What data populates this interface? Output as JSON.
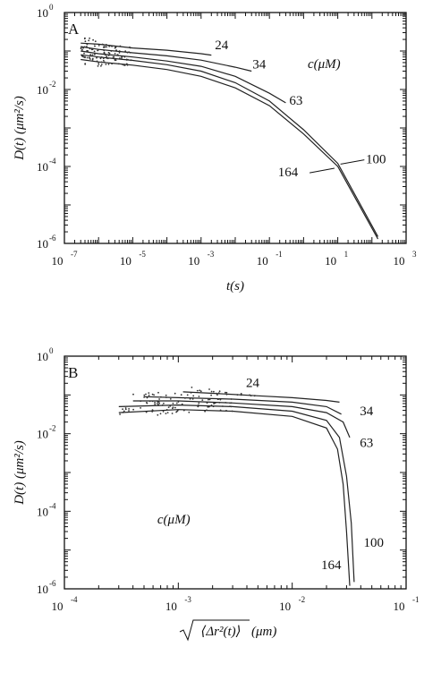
{
  "chart_data": [
    {
      "type": "line",
      "panel_label": "A",
      "xlabel": "t(s)",
      "ylabel": "D(t) (μm²/s)",
      "x_scale": "log",
      "y_scale": "log",
      "xlim": [
        1e-07,
        1000
      ],
      "ylim": [
        1e-06,
        1
      ],
      "x_ticks": [
        {
          "base": "10",
          "exp": "-7",
          "value": 1e-07
        },
        {
          "base": "10",
          "exp": "-5",
          "value": 1e-05
        },
        {
          "base": "10",
          "exp": "-3",
          "value": 0.001
        },
        {
          "base": "10",
          "exp": "-1",
          "value": 0.1
        },
        {
          "base": "10",
          "exp": "1",
          "value": 10
        },
        {
          "base": "10",
          "exp": "3",
          "value": 1000
        }
      ],
      "y_ticks": [
        {
          "base": "10",
          "exp": "0",
          "value": 1
        },
        {
          "base": "10",
          "exp": "-2",
          "value": 0.01
        },
        {
          "base": "10",
          "exp": "-4",
          "value": 0.0001
        },
        {
          "base": "10",
          "exp": "-6",
          "value": 1e-06
        }
      ],
      "legend_title": "c(μM)",
      "series": [
        {
          "name": "24",
          "x": [
            3e-07,
            1e-06,
            1e-05,
            0.0001,
            0.001,
            0.002
          ],
          "y": [
            0.16,
            0.15,
            0.12,
            0.105,
            0.085,
            0.078
          ]
        },
        {
          "name": "34",
          "x": [
            3e-07,
            1e-06,
            1e-05,
            0.0001,
            0.001,
            0.01,
            0.03
          ],
          "y": [
            0.13,
            0.11,
            0.09,
            0.075,
            0.058,
            0.038,
            0.03
          ]
        },
        {
          "name": "63",
          "x": [
            3e-07,
            1e-06,
            1e-05,
            0.0001,
            0.001,
            0.01,
            0.1,
            0.3
          ],
          "y": [
            0.1,
            0.085,
            0.07,
            0.055,
            0.04,
            0.022,
            0.008,
            0.0045
          ]
        },
        {
          "name": "100",
          "x": [
            3e-07,
            1e-06,
            1e-05,
            0.0001,
            0.001,
            0.01,
            0.1,
            1,
            10,
            150
          ],
          "y": [
            0.08,
            0.07,
            0.057,
            0.044,
            0.03,
            0.015,
            0.005,
            0.0009,
            0.00012,
            1.5e-06
          ]
        },
        {
          "name": "164",
          "x": [
            3e-07,
            1e-06,
            1e-05,
            0.0001,
            0.001,
            0.01,
            0.1,
            1,
            10,
            150
          ],
          "y": [
            0.06,
            0.052,
            0.043,
            0.033,
            0.022,
            0.011,
            0.0038,
            0.0007,
            0.0001,
            1.3e-06
          ]
        }
      ],
      "curve_label_at": [
        {
          "name": "24",
          "x": 0.004,
          "y": 0.11
        },
        {
          "name": "34",
          "x": 0.05,
          "y": 0.035
        },
        {
          "name": "63",
          "x": 0.6,
          "y": 0.004
        },
        {
          "name": "100",
          "x": 130,
          "y": 0.00012
        },
        {
          "name": "164",
          "x": 0.35,
          "y": 5.5e-05
        }
      ]
    },
    {
      "type": "line",
      "panel_label": "B",
      "xlabel": "(μm)",
      "xlabel_sqrt": "⟨Δr²(t)⟩",
      "ylabel": "D(t) (μm²/s)",
      "x_scale": "log",
      "y_scale": "log",
      "xlim": [
        0.0001,
        0.1
      ],
      "ylim": [
        1e-06,
        1
      ],
      "x_ticks": [
        {
          "base": "10",
          "exp": "-4",
          "value": 0.0001
        },
        {
          "base": "10",
          "exp": "-3",
          "value": 0.001
        },
        {
          "base": "10",
          "exp": "-2",
          "value": 0.01
        },
        {
          "base": "10",
          "exp": "-1",
          "value": 0.1
        }
      ],
      "y_ticks": [
        {
          "base": "10",
          "exp": "0",
          "value": 1
        },
        {
          "base": "10",
          "exp": "-2",
          "value": 0.01
        },
        {
          "base": "10",
          "exp": "-4",
          "value": 0.0001
        },
        {
          "base": "10",
          "exp": "-6",
          "value": 1e-06
        }
      ],
      "legend_title": "c(μM)",
      "series": [
        {
          "name": "24",
          "x": [
            0.0011,
            0.002,
            0.005,
            0.01,
            0.02,
            0.026
          ],
          "y": [
            0.12,
            0.11,
            0.095,
            0.085,
            0.072,
            0.065
          ]
        },
        {
          "name": "34",
          "x": [
            0.0005,
            0.001,
            0.003,
            0.01,
            0.02,
            0.027
          ],
          "y": [
            0.09,
            0.085,
            0.078,
            0.065,
            0.05,
            0.032
          ]
        },
        {
          "name": "63",
          "x": [
            0.0004,
            0.001,
            0.003,
            0.01,
            0.02,
            0.028,
            0.032
          ],
          "y": [
            0.07,
            0.07,
            0.062,
            0.05,
            0.035,
            0.02,
            0.008
          ]
        },
        {
          "name": "100",
          "x": [
            0.0003,
            0.001,
            0.003,
            0.01,
            0.02,
            0.026,
            0.03,
            0.033,
            0.035
          ],
          "y": [
            0.05,
            0.055,
            0.05,
            0.038,
            0.022,
            0.008,
            0.0008,
            5e-05,
            1.5e-06
          ]
        },
        {
          "name": "164",
          "x": [
            0.0003,
            0.001,
            0.003,
            0.01,
            0.02,
            0.025,
            0.028,
            0.03,
            0.032
          ],
          "y": [
            0.035,
            0.042,
            0.038,
            0.028,
            0.014,
            0.004,
            0.0005,
            3e-05,
            1.2e-06
          ]
        }
      ],
      "curve_label_at": [
        {
          "name": "24",
          "x": 0.0045,
          "y": 0.16
        },
        {
          "name": "34",
          "x": 0.045,
          "y": 0.03
        },
        {
          "name": "63",
          "x": 0.045,
          "y": 0.0045
        },
        {
          "name": "100",
          "x": 0.052,
          "y": 1.2e-05
        },
        {
          "name": "164",
          "x": 0.022,
          "y": 3.2e-06
        }
      ]
    }
  ]
}
